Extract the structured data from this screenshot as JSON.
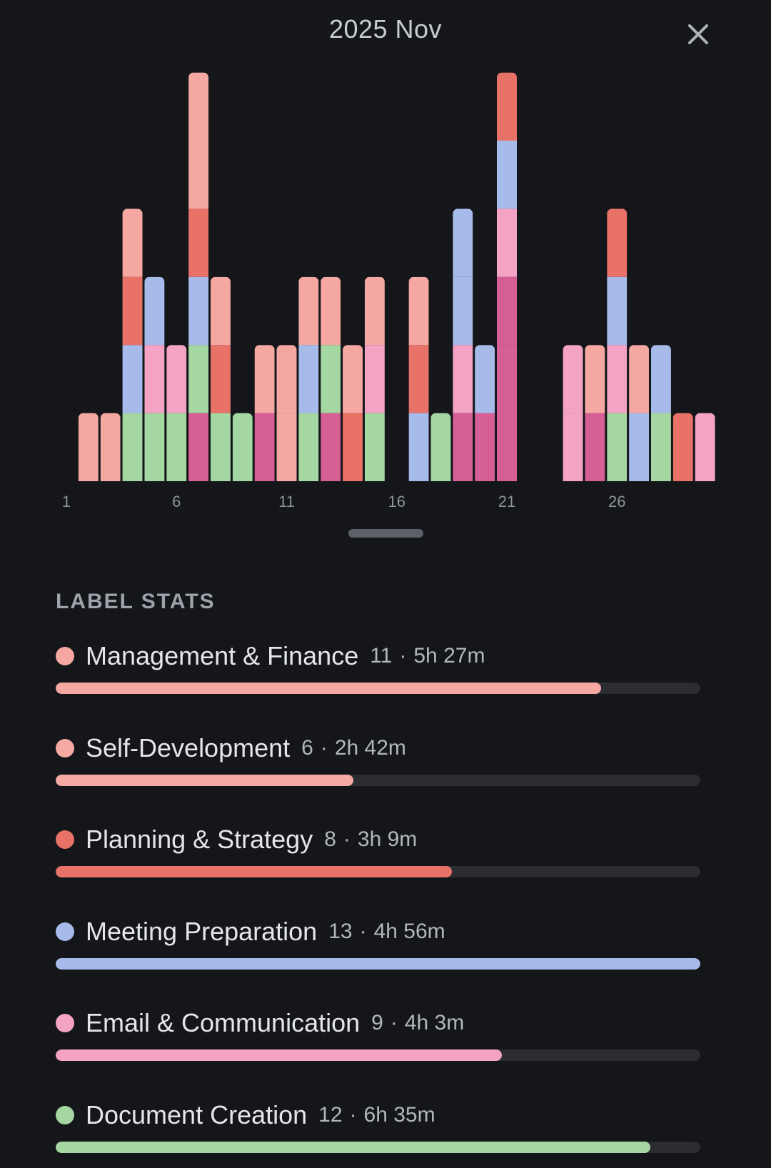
{
  "header": {
    "title": "2025 Nov",
    "close_icon": "close-icon"
  },
  "colors": {
    "management": "#f5a8a2",
    "self": "#f5aaa3",
    "planning": "#e87268",
    "meeting": "#a7bbeb",
    "email": "#f4a3c5",
    "document": "#a4d7a1",
    "magenta": "#d65f96"
  },
  "chart_data": {
    "type": "bar",
    "stacked": true,
    "categories": [
      "1",
      "2",
      "3",
      "4",
      "5",
      "6",
      "7",
      "8",
      "9",
      "10",
      "11",
      "12",
      "13",
      "14",
      "15",
      "16",
      "17",
      "18",
      "19",
      "20",
      "21",
      "22",
      "23",
      "24",
      "25",
      "26",
      "27",
      "28",
      "29",
      "30"
    ],
    "x_tick_labels": [
      "1",
      "6",
      "11",
      "16",
      "21",
      "26"
    ],
    "unit_note": "each segment = 1 entry",
    "ylim": [
      0,
      6
    ],
    "days": [
      [],
      [
        "management"
      ],
      [
        "management"
      ],
      [
        "document",
        "meeting",
        "planning",
        "management"
      ],
      [
        "document",
        "email",
        "meeting"
      ],
      [
        "document",
        "email"
      ],
      [
        "magenta",
        "document",
        "meeting",
        "planning",
        "management",
        "management"
      ],
      [
        "document",
        "planning",
        "management"
      ],
      [
        "document"
      ],
      [
        "magenta",
        "management"
      ],
      [
        "management",
        "management"
      ],
      [
        "document",
        "meeting",
        "management"
      ],
      [
        "magenta",
        "document",
        "management"
      ],
      [
        "planning",
        "management"
      ],
      [
        "document",
        "email",
        "management"
      ],
      [],
      [
        "meeting",
        "planning",
        "management"
      ],
      [
        "document"
      ],
      [
        "magenta",
        "email",
        "meeting",
        "meeting"
      ],
      [
        "magenta",
        "meeting"
      ],
      [
        "magenta",
        "magenta",
        "magenta",
        "email",
        "meeting",
        "planning"
      ],
      [],
      [],
      [
        "email",
        "email"
      ],
      [
        "magenta",
        "management"
      ],
      [
        "document",
        "email",
        "meeting",
        "planning"
      ],
      [
        "meeting",
        "management"
      ],
      [
        "document",
        "meeting"
      ],
      [
        "planning"
      ],
      [
        "email"
      ]
    ]
  },
  "stats": {
    "section_title": "LABEL STATS",
    "items": [
      {
        "name": "Management & Finance",
        "count": "11",
        "sep": "·",
        "time": "5h 27m",
        "color": "#f5a8a2",
        "fraction": 0.846
      },
      {
        "name": "Self-Development",
        "count": "6",
        "sep": "·",
        "time": "2h 42m",
        "color": "#f5aaa3",
        "fraction": 0.462
      },
      {
        "name": "Planning & Strategy",
        "count": "8",
        "sep": "·",
        "time": "3h 9m",
        "color": "#e87268",
        "fraction": 0.615
      },
      {
        "name": "Meeting Preparation",
        "count": "13",
        "sep": "·",
        "time": "4h 56m",
        "color": "#a7bbeb",
        "fraction": 1.0
      },
      {
        "name": "Email & Communication",
        "count": "9",
        "sep": "·",
        "time": "4h 3m",
        "color": "#f4a3c5",
        "fraction": 0.692
      },
      {
        "name": "Document Creation",
        "count": "12",
        "sep": "·",
        "time": "6h 35m",
        "color": "#a4d7a1",
        "fraction": 0.923
      }
    ]
  }
}
